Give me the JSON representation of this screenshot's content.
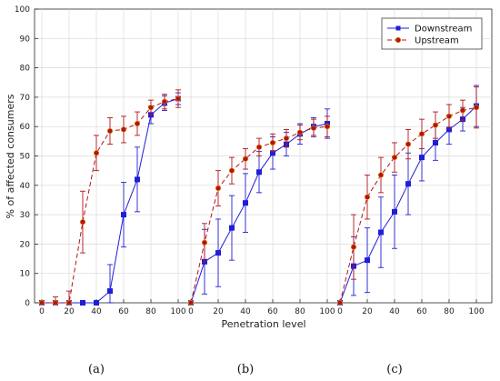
{
  "chart_data": {
    "type": "line",
    "xlabel": "Penetration level",
    "ylabel": "% of affected consumers",
    "ylim": [
      0,
      100
    ],
    "yticks": [
      "0",
      "10",
      "20",
      "30",
      "40",
      "50",
      "60",
      "70",
      "80",
      "90",
      "100"
    ],
    "xticks": [
      "0",
      "20",
      "40",
      "60",
      "80",
      "100"
    ],
    "grid": true,
    "legend_position": "top-right",
    "legend": [
      "Downstream",
      "Upstream"
    ],
    "colors": {
      "Downstream": "#1f1fd6",
      "Upstream": "#b4131a"
    },
    "panels": [
      {
        "label": "(a)",
        "x": [
          0,
          10,
          20,
          30,
          40,
          50,
          60,
          70,
          80,
          90,
          100
        ],
        "series": [
          {
            "name": "Downstream",
            "style": "solid",
            "marker": "square",
            "values": [
              0,
              0,
              0,
              0,
              0,
              4,
              30,
              42,
              64,
              68,
              69.5
            ],
            "err": [
              0,
              0,
              0,
              0,
              0,
              9,
              11,
              11,
              3,
              2.5,
              2
            ]
          },
          {
            "name": "Upstream",
            "style": "dashed",
            "marker": "circle",
            "values": [
              0,
              0,
              0,
              27.5,
              51,
              58.5,
              59,
              61,
              66.5,
              68.5,
              69.5
            ],
            "err": [
              0,
              2,
              4,
              10.5,
              6,
              4.5,
              4.5,
              4,
              2.5,
              2.5,
              3
            ]
          }
        ]
      },
      {
        "label": "(b)",
        "x": [
          0,
          10,
          20,
          30,
          40,
          50,
          60,
          70,
          80,
          90,
          100
        ],
        "series": [
          {
            "name": "Downstream",
            "style": "solid",
            "marker": "square",
            "values": [
              0,
              14,
              17,
              25.5,
              34,
              44.5,
              51,
              54,
              57.5,
              60,
              61
            ],
            "err": [
              0,
              11,
              11.5,
              11,
              10,
              7,
              5.5,
              4,
              3.5,
              3,
              5
            ]
          },
          {
            "name": "Upstream",
            "style": "dashed",
            "marker": "circle",
            "values": [
              0,
              20.5,
              39,
              45,
              49,
              53,
              54.5,
              56,
              58,
              59.5,
              60
            ],
            "err": [
              0,
              6.5,
              6,
              4.5,
              3.5,
              3,
              3,
              3,
              2.5,
              3,
              3.5
            ]
          }
        ]
      },
      {
        "label": "(c)",
        "x": [
          0,
          10,
          20,
          30,
          40,
          50,
          60,
          70,
          80,
          90,
          100
        ],
        "series": [
          {
            "name": "Downstream",
            "style": "solid",
            "marker": "square",
            "values": [
              0,
              12.5,
              14.5,
              24,
              31,
              40.5,
              49.5,
              54.5,
              59,
              62.5,
              67
            ],
            "err": [
              0,
              10,
              11,
              12,
              12.5,
              10.5,
              8,
              6,
              5,
              4,
              7
            ]
          },
          {
            "name": "Upstream",
            "style": "dashed",
            "marker": "circle",
            "values": [
              0,
              19,
              36,
              43.5,
              49.5,
              54,
              57.5,
              60.5,
              63.5,
              65.5,
              66.5
            ],
            "err": [
              0,
              11,
              7.5,
              6,
              5,
              5,
              5,
              4.5,
              4,
              3.5,
              7
            ]
          }
        ]
      }
    ]
  }
}
